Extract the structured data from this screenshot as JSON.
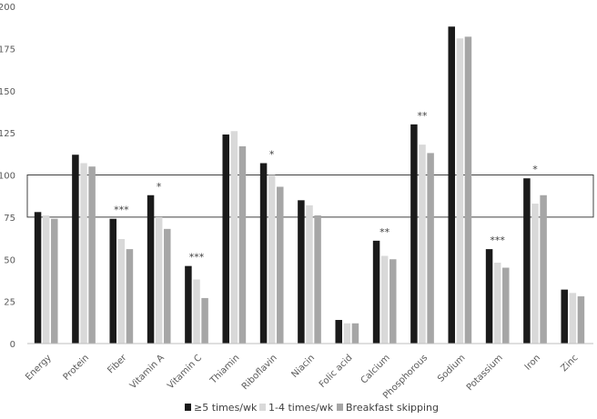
{
  "chart_data": {
    "type": "bar",
    "title": "",
    "xlabel": "",
    "ylabel": "",
    "ylim": [
      0,
      200
    ],
    "yticks": [
      0,
      25,
      50,
      75,
      100,
      125,
      150,
      175,
      200
    ],
    "grid": false,
    "legend_position": "bottom",
    "categories": [
      "Energy",
      "Protein",
      "Fiber",
      "Vitamin A",
      "Vitamin C",
      "Thiamin",
      "Riboflavin",
      "Niacin",
      "Folic acid",
      "Calcium",
      "Phosphorous",
      "Sodium",
      "Potassium",
      "Iron",
      "Zinc"
    ],
    "series": [
      {
        "name": "≥5 times/wk",
        "color": "#1a1a1a",
        "values": [
          78,
          112,
          74,
          88,
          46,
          124,
          107,
          85,
          14,
          61,
          130,
          188,
          56,
          98,
          32
        ]
      },
      {
        "name": "1-4 times/wk",
        "color": "#d9d9d9",
        "values": [
          76,
          107,
          62,
          75,
          38,
          126,
          100,
          82,
          12,
          52,
          118,
          181,
          48,
          83,
          30
        ]
      },
      {
        "name": "Breakfast skipping",
        "color": "#a6a6a6",
        "values": [
          74,
          105,
          56,
          68,
          27,
          117,
          93,
          76,
          12,
          50,
          113,
          182,
          45,
          88,
          28
        ]
      }
    ],
    "significance": [
      "",
      "",
      "***",
      "*",
      "***",
      "",
      "*",
      "",
      "",
      "**",
      "**",
      "",
      "***",
      "*",
      ""
    ],
    "reference_band": [
      75,
      100
    ]
  }
}
